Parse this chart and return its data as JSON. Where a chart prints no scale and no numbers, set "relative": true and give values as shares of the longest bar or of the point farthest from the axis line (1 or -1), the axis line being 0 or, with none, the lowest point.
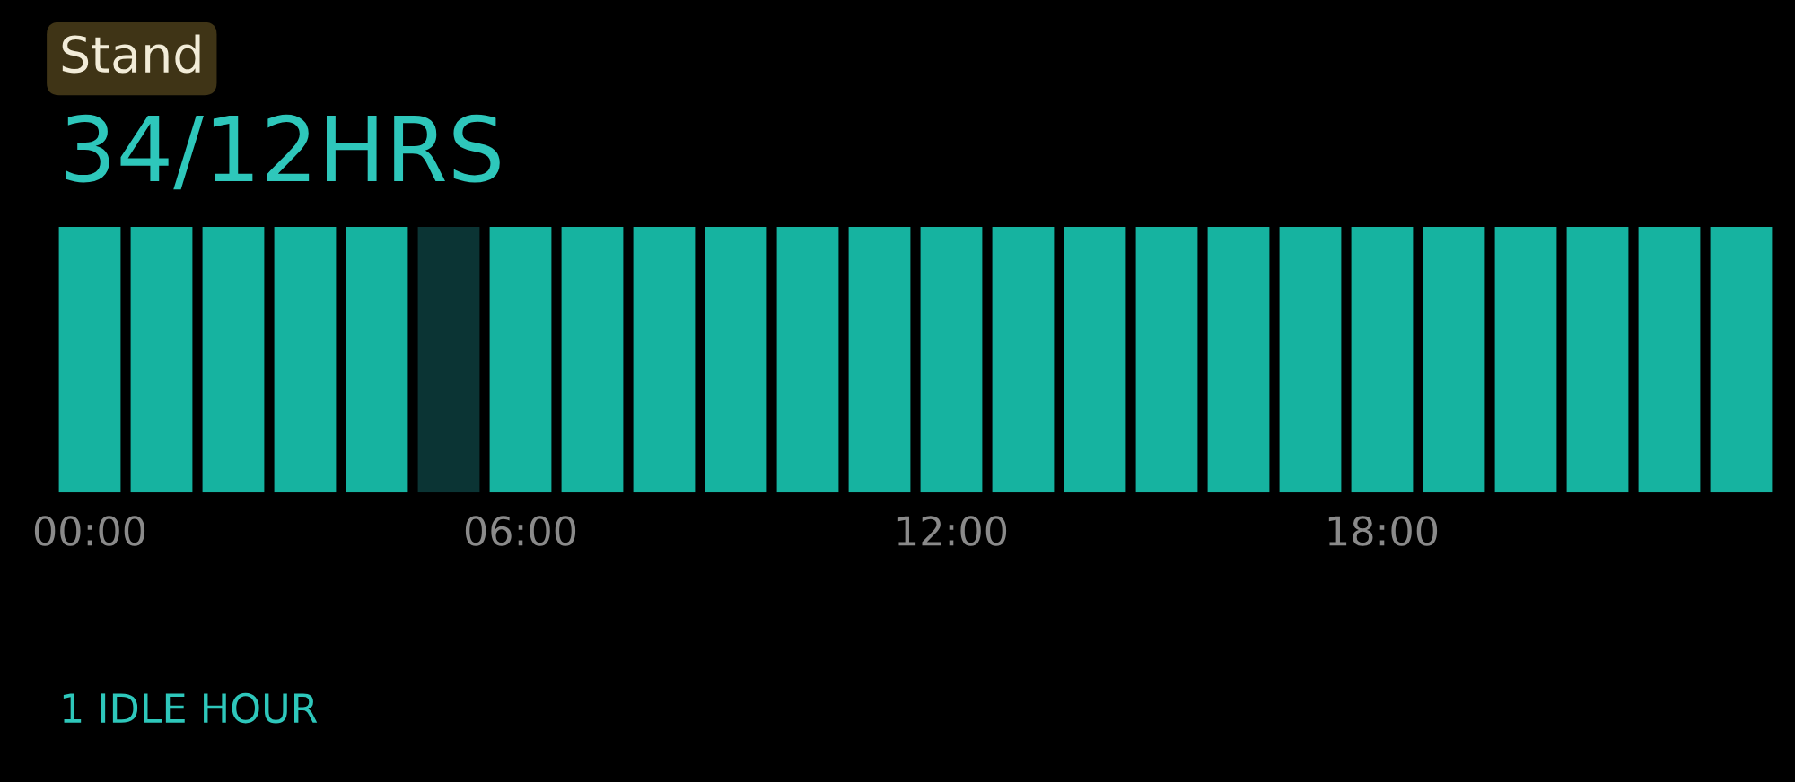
{
  "chart_data": {
    "type": "bar",
    "title": "Stand",
    "subtitle": "34/12HRS",
    "categories": [
      "00:00",
      null,
      null,
      null,
      null,
      null,
      "06:00",
      null,
      null,
      null,
      null,
      null,
      "12:00",
      null,
      null,
      null,
      null,
      null,
      "18:00",
      null,
      null,
      null,
      null,
      null
    ],
    "values": [
      1,
      1,
      1,
      1,
      1,
      1,
      1,
      1,
      1,
      1,
      1,
      1,
      1,
      1,
      1,
      1,
      1,
      1,
      1,
      1,
      1,
      1,
      1,
      1
    ],
    "colors": [
      "#16b3a0",
      "#16b3a0",
      "#16b3a0",
      "#16b3a0",
      "#16b3a0",
      "#0b3434",
      "#16b3a0",
      "#16b3a0",
      "#16b3a0",
      "#16b3a0",
      "#16b3a0",
      "#16b3a0",
      "#16b3a0",
      "#16b3a0",
      "#16b3a0",
      "#16b3a0",
      "#16b3a0",
      "#16b3a0",
      "#16b3a0",
      "#16b3a0",
      "#16b3a0",
      "#16b3a0",
      "#16b3a0",
      "#16b3a0"
    ],
    "relative": true,
    "annotations": [
      "1 IDLE HOUR"
    ]
  }
}
